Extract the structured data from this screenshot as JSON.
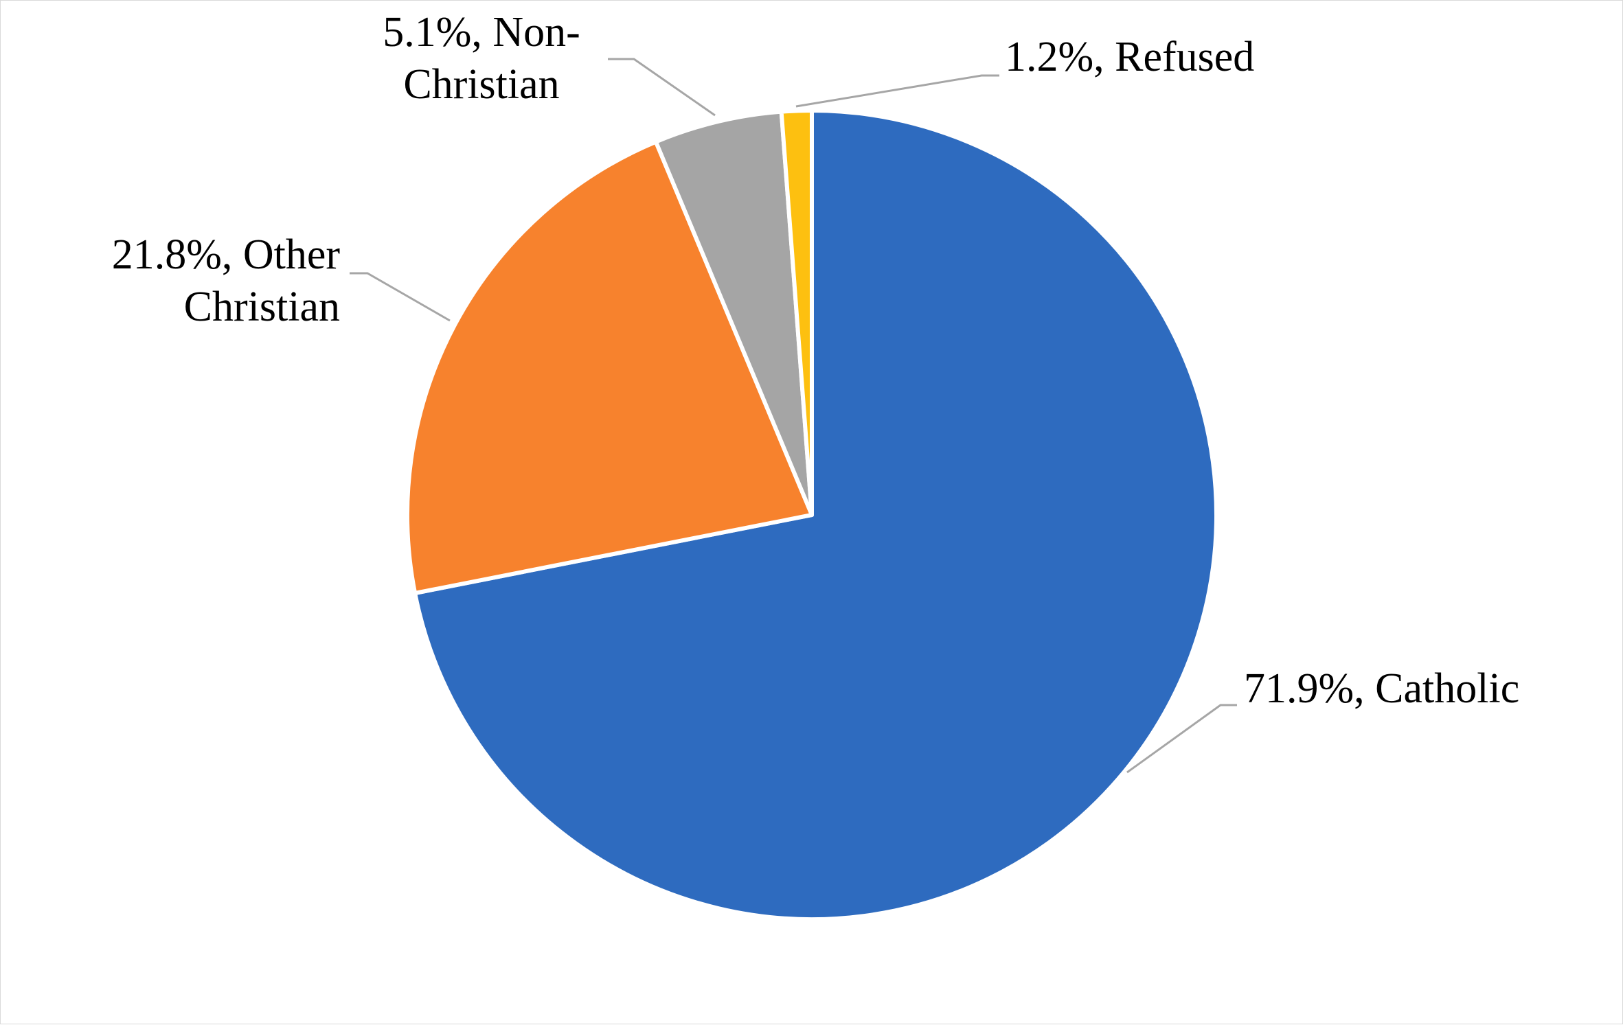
{
  "chart_data": {
    "type": "pie",
    "title": "",
    "start_angle_deg": 0,
    "direction": "clockwise",
    "legend": "none",
    "slices": [
      {
        "label": "Catholic",
        "value": 71.9,
        "display": "71.9%, Catholic",
        "lines": [
          "71.9%, Catholic"
        ],
        "color": "#2e6bbf"
      },
      {
        "label": "Other Christian",
        "value": 21.8,
        "display": "21.8%, Other Christian",
        "lines": [
          "21.8%, Other",
          "Christian"
        ],
        "color": "#f7822d"
      },
      {
        "label": "Non-Christian",
        "value": 5.1,
        "display": "5.1%, Non-Christian",
        "lines": [
          "5.1%, Non-",
          "Christian"
        ],
        "color": "#a5a5a5"
      },
      {
        "label": "Refused",
        "value": 1.2,
        "display": "1.2%, Refused",
        "lines": [
          "1.2%, Refused"
        ],
        "color": "#fdc010"
      }
    ]
  }
}
